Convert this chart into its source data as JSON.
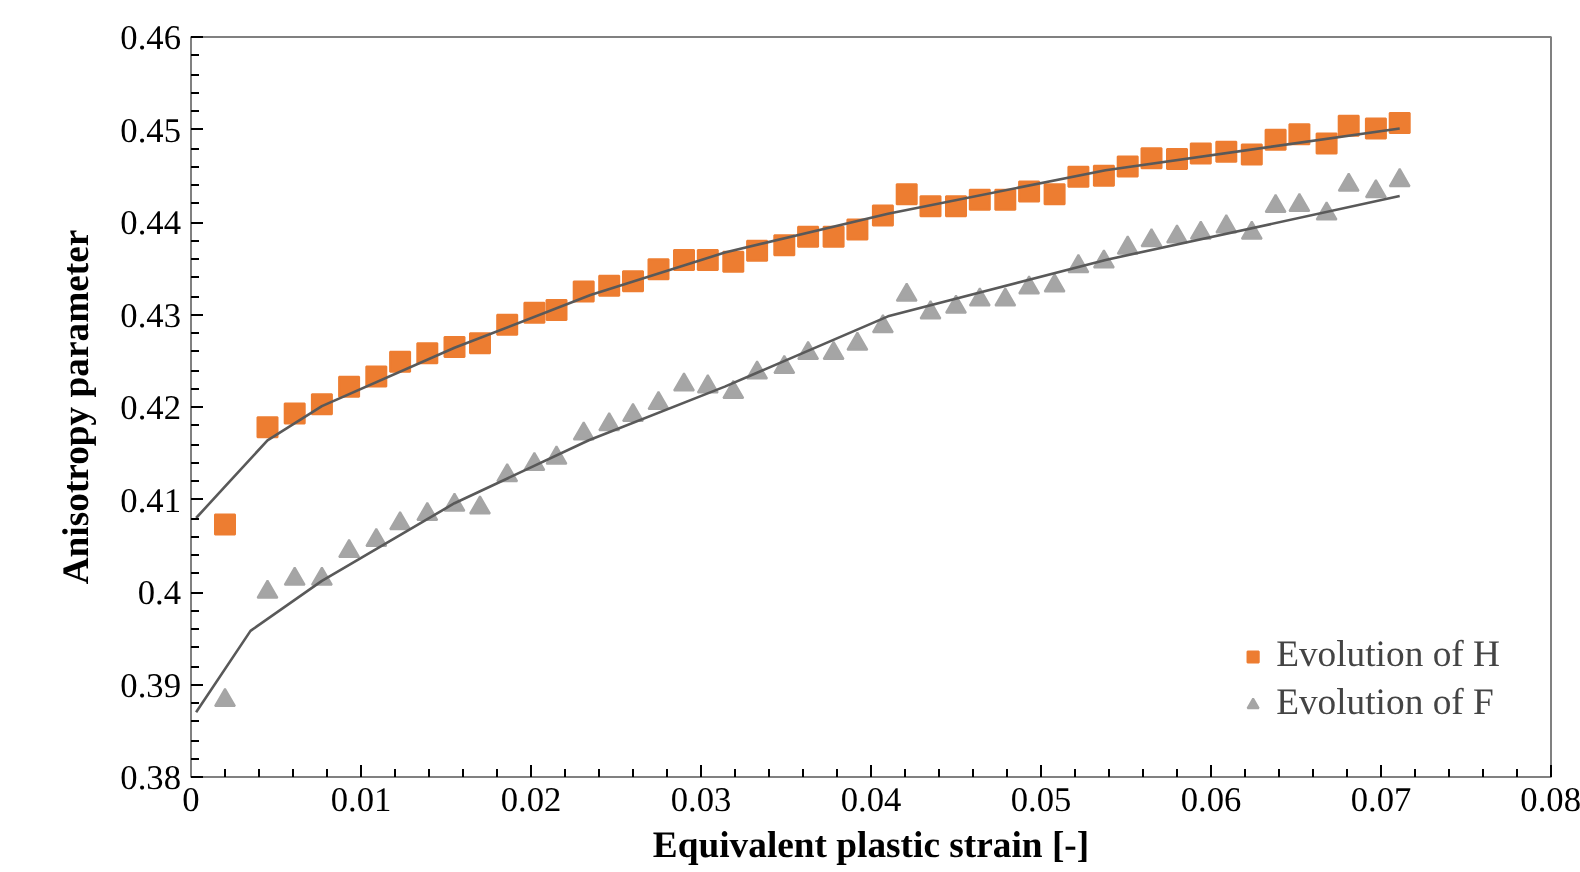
{
  "chart_data": {
    "type": "scatter",
    "xlabel": "Equivalent plastic strain [-]",
    "ylabel": "Anisotropy parameter",
    "xlim": [
      0,
      0.08
    ],
    "ylim": [
      0.38,
      0.46
    ],
    "xticks": [
      0,
      0.01,
      0.02,
      0.03,
      0.04,
      0.05,
      0.06,
      0.07,
      0.08
    ],
    "yticks": [
      0.38,
      0.39,
      {
        "value": 0.4,
        "label": "0.4"
      },
      0.41,
      0.42,
      0.43,
      0.44,
      0.45,
      0.46
    ],
    "grid": false,
    "legend": "bottom right",
    "x": [
      0.002,
      0.0045,
      0.0061,
      0.0077,
      0.0093,
      0.0109,
      0.0123,
      0.0139,
      0.0155,
      0.017,
      0.0186,
      0.0202,
      0.0215,
      0.0231,
      0.0246,
      0.026,
      0.0275,
      0.029,
      0.0304,
      0.0319,
      0.0333,
      0.0349,
      0.0363,
      0.0378,
      0.0392,
      0.0407,
      0.0421,
      0.0435,
      0.045,
      0.0464,
      0.0479,
      0.0493,
      0.0508,
      0.0522,
      0.0537,
      0.0551,
      0.0565,
      0.058,
      0.0594,
      0.0609,
      0.0624,
      0.0638,
      0.0652,
      0.0668,
      0.0681,
      0.0697,
      0.0711
    ],
    "series": [
      {
        "name": "Evolution of H",
        "color": "#ed7d31",
        "marker": "square",
        "values": [
          0.4073,
          0.4178,
          0.4193,
          0.4203,
          0.4222,
          0.4233,
          0.4249,
          0.4258,
          0.4265,
          0.4269,
          0.4289,
          0.4302,
          0.4305,
          0.4325,
          0.4331,
          0.4336,
          0.4349,
          0.4359,
          0.4359,
          0.4357,
          0.4369,
          0.4375,
          0.4384,
          0.4384,
          0.4392,
          0.4407,
          0.443,
          0.4417,
          0.4417,
          0.4424,
          0.4424,
          0.4433,
          0.443,
          0.4449,
          0.445,
          0.446,
          0.4469,
          0.4468,
          0.4474,
          0.4476,
          0.4473,
          0.4489,
          0.4495,
          0.4485,
          0.4504,
          0.4501,
          0.4507
        ]
      },
      {
        "name": "Evolution of F",
        "color": "#a5a5a5",
        "marker": "triangle",
        "values": [
          0.3883,
          0.4,
          0.4014,
          0.4014,
          0.4044,
          0.4056,
          0.4074,
          0.4084,
          0.4094,
          0.4091,
          0.4126,
          0.4138,
          0.4145,
          0.4171,
          0.4181,
          0.4191,
          0.4204,
          0.4224,
          0.4222,
          0.4216,
          0.4237,
          0.4243,
          0.4258,
          0.4258,
          0.4268,
          0.4287,
          0.4321,
          0.4302,
          0.4308,
          0.4316,
          0.4316,
          0.4329,
          0.4331,
          0.4352,
          0.4357,
          0.4372,
          0.438,
          0.4384,
          0.4388,
          0.4395,
          0.4388,
          0.4417,
          0.4418,
          0.4409,
          0.444,
          0.4433,
          0.4445
        ]
      },
      {
        "type": "line",
        "color": "#595959",
        "marker": "none",
        "x": [
          0.0003,
          0.0019,
          0.0045,
          0.0077,
          0.0155,
          0.0235,
          0.0314,
          0.041,
          0.0538,
          0.0711
        ],
        "values": [
          0.408,
          0.4112,
          0.4164,
          0.4201,
          0.4264,
          0.4321,
          0.4367,
          0.4409,
          0.4456,
          0.4501
        ]
      },
      {
        "type": "line",
        "color": "#595959",
        "marker": "none",
        "x": [
          0.0003,
          0.0035,
          0.0077,
          0.0155,
          0.0234,
          0.0314,
          0.041,
          0.0538,
          0.0711
        ],
        "values": [
          0.387,
          0.3958,
          0.4012,
          0.4096,
          0.4164,
          0.4222,
          0.4298,
          0.4359,
          0.4428
        ]
      }
    ]
  }
}
